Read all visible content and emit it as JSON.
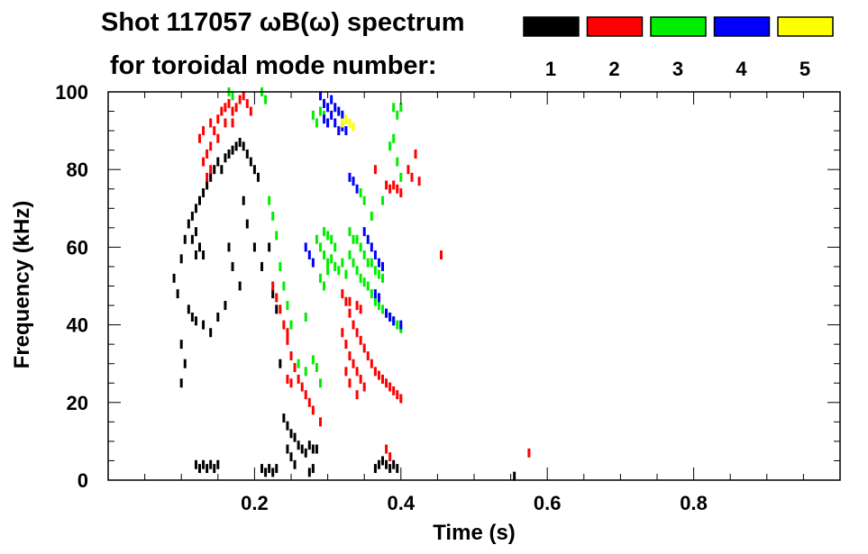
{
  "chart_data": {
    "type": "scatter",
    "title_line1": "Shot 117057 ωB(ω) spectrum",
    "title_line2": "for toroidal mode number:",
    "xlabel": "Time (s)",
    "ylabel": "Frequency (kHz)",
    "xlim": [
      0.0,
      1.0
    ],
    "ylim": [
      0,
      100
    ],
    "x_ticks": [
      0.2,
      0.4,
      0.6,
      0.8
    ],
    "x_tick_labels": [
      "0.2",
      "0.4",
      "0.6",
      "0.8"
    ],
    "y_ticks": [
      0,
      20,
      40,
      60,
      80,
      100
    ],
    "y_tick_labels": [
      "0",
      "20",
      "40",
      "60",
      "80",
      "100"
    ],
    "grid": false,
    "legend_position": "top-right",
    "legend": [
      {
        "label": "1",
        "color": "#000000"
      },
      {
        "label": "2",
        "color": "#ff0000"
      },
      {
        "label": "3",
        "color": "#00ee00"
      },
      {
        "label": "4",
        "color": "#0000ff"
      },
      {
        "label": "5",
        "color": "#ffff00"
      }
    ],
    "series": [
      {
        "name": "1",
        "color": "#000000",
        "points": [
          [
            0.09,
            52
          ],
          [
            0.095,
            48
          ],
          [
            0.1,
            57
          ],
          [
            0.105,
            62
          ],
          [
            0.11,
            66
          ],
          [
            0.115,
            68
          ],
          [
            0.12,
            70
          ],
          [
            0.125,
            72
          ],
          [
            0.13,
            74
          ],
          [
            0.135,
            76
          ],
          [
            0.14,
            78
          ],
          [
            0.145,
            80
          ],
          [
            0.15,
            82
          ],
          [
            0.155,
            80
          ],
          [
            0.16,
            83
          ],
          [
            0.165,
            84
          ],
          [
            0.17,
            85
          ],
          [
            0.175,
            86
          ],
          [
            0.18,
            87
          ],
          [
            0.185,
            86
          ],
          [
            0.19,
            84
          ],
          [
            0.195,
            82
          ],
          [
            0.2,
            80
          ],
          [
            0.205,
            78
          ],
          [
            0.115,
            62
          ],
          [
            0.12,
            64
          ],
          [
            0.125,
            60
          ],
          [
            0.13,
            58
          ],
          [
            0.12,
            58
          ],
          [
            0.11,
            44
          ],
          [
            0.115,
            42
          ],
          [
            0.12,
            41
          ],
          [
            0.1,
            35
          ],
          [
            0.105,
            30
          ],
          [
            0.1,
            25
          ],
          [
            0.13,
            40
          ],
          [
            0.14,
            38
          ],
          [
            0.15,
            42
          ],
          [
            0.16,
            45
          ],
          [
            0.165,
            60
          ],
          [
            0.17,
            55
          ],
          [
            0.18,
            50
          ],
          [
            0.185,
            72
          ],
          [
            0.19,
            66
          ],
          [
            0.2,
            60
          ],
          [
            0.21,
            55
          ],
          [
            0.22,
            60
          ],
          [
            0.225,
            48
          ],
          [
            0.23,
            44
          ],
          [
            0.235,
            30
          ],
          [
            0.24,
            16
          ],
          [
            0.245,
            14
          ],
          [
            0.25,
            12
          ],
          [
            0.255,
            11
          ],
          [
            0.26,
            9
          ],
          [
            0.265,
            8
          ],
          [
            0.27,
            7
          ],
          [
            0.275,
            9
          ],
          [
            0.28,
            8
          ],
          [
            0.285,
            8
          ],
          [
            0.245,
            8
          ],
          [
            0.25,
            6
          ],
          [
            0.255,
            4
          ],
          [
            0.12,
            4
          ],
          [
            0.125,
            3
          ],
          [
            0.13,
            4
          ],
          [
            0.135,
            3
          ],
          [
            0.14,
            4
          ],
          [
            0.145,
            3
          ],
          [
            0.15,
            4
          ],
          [
            0.21,
            3
          ],
          [
            0.215,
            2
          ],
          [
            0.22,
            3
          ],
          [
            0.225,
            2
          ],
          [
            0.23,
            3
          ],
          [
            0.275,
            2
          ],
          [
            0.28,
            3
          ],
          [
            0.365,
            3
          ],
          [
            0.37,
            4
          ],
          [
            0.375,
            5
          ],
          [
            0.38,
            4
          ],
          [
            0.385,
            3
          ],
          [
            0.39,
            4
          ],
          [
            0.395,
            3
          ],
          [
            0.555,
            1
          ]
        ]
      },
      {
        "name": "2",
        "color": "#ff0000",
        "points": [
          [
            0.13,
            82
          ],
          [
            0.135,
            84
          ],
          [
            0.14,
            86
          ],
          [
            0.145,
            90
          ],
          [
            0.15,
            93
          ],
          [
            0.155,
            95
          ],
          [
            0.16,
            96
          ],
          [
            0.165,
            97
          ],
          [
            0.17,
            95
          ],
          [
            0.175,
            96
          ],
          [
            0.18,
            98
          ],
          [
            0.185,
            99
          ],
          [
            0.19,
            97
          ],
          [
            0.195,
            95
          ],
          [
            0.125,
            88
          ],
          [
            0.13,
            90
          ],
          [
            0.14,
            92
          ],
          [
            0.15,
            88
          ],
          [
            0.16,
            92
          ],
          [
            0.17,
            92
          ],
          [
            0.135,
            78
          ],
          [
            0.14,
            80
          ],
          [
            0.225,
            50
          ],
          [
            0.23,
            47
          ],
          [
            0.235,
            44
          ],
          [
            0.24,
            40
          ],
          [
            0.245,
            36
          ],
          [
            0.25,
            32
          ],
          [
            0.255,
            29
          ],
          [
            0.26,
            26
          ],
          [
            0.265,
            24
          ],
          [
            0.27,
            22
          ],
          [
            0.275,
            20
          ],
          [
            0.28,
            18
          ],
          [
            0.245,
            26
          ],
          [
            0.25,
            25
          ],
          [
            0.32,
            48
          ],
          [
            0.325,
            46
          ],
          [
            0.33,
            43
          ],
          [
            0.335,
            40
          ],
          [
            0.34,
            38
          ],
          [
            0.345,
            36
          ],
          [
            0.35,
            34
          ],
          [
            0.355,
            32
          ],
          [
            0.36,
            30
          ],
          [
            0.365,
            28
          ],
          [
            0.37,
            27
          ],
          [
            0.375,
            26
          ],
          [
            0.38,
            25
          ],
          [
            0.385,
            24
          ],
          [
            0.39,
            23
          ],
          [
            0.395,
            22
          ],
          [
            0.4,
            21
          ],
          [
            0.32,
            38
          ],
          [
            0.325,
            35
          ],
          [
            0.33,
            32
          ],
          [
            0.335,
            30
          ],
          [
            0.34,
            28
          ],
          [
            0.345,
            26
          ],
          [
            0.35,
            24
          ],
          [
            0.325,
            28
          ],
          [
            0.33,
            25
          ],
          [
            0.34,
            22
          ],
          [
            0.33,
            46
          ],
          [
            0.34,
            45
          ],
          [
            0.345,
            44
          ],
          [
            0.365,
            80
          ],
          [
            0.38,
            76
          ],
          [
            0.385,
            75
          ],
          [
            0.39,
            76
          ],
          [
            0.395,
            75
          ],
          [
            0.4,
            74
          ],
          [
            0.41,
            80
          ],
          [
            0.415,
            78
          ],
          [
            0.425,
            77
          ],
          [
            0.42,
            84
          ],
          [
            0.455,
            58
          ],
          [
            0.38,
            8
          ],
          [
            0.385,
            6
          ],
          [
            0.575,
            7
          ],
          [
            0.245,
            38
          ],
          [
            0.29,
            15
          ]
        ]
      },
      {
        "name": "3",
        "color": "#00ee00",
        "points": [
          [
            0.165,
            100
          ],
          [
            0.17,
            99
          ],
          [
            0.21,
            100
          ],
          [
            0.215,
            98
          ],
          [
            0.28,
            94
          ],
          [
            0.285,
            92
          ],
          [
            0.29,
            95
          ],
          [
            0.295,
            94
          ],
          [
            0.22,
            72
          ],
          [
            0.225,
            68
          ],
          [
            0.23,
            63
          ],
          [
            0.235,
            55
          ],
          [
            0.24,
            50
          ],
          [
            0.245,
            45
          ],
          [
            0.25,
            40
          ],
          [
            0.28,
            31
          ],
          [
            0.285,
            29
          ],
          [
            0.29,
            25
          ],
          [
            0.27,
            42
          ],
          [
            0.285,
            62
          ],
          [
            0.29,
            60
          ],
          [
            0.295,
            58
          ],
          [
            0.3,
            56
          ],
          [
            0.305,
            57
          ],
          [
            0.31,
            55
          ],
          [
            0.315,
            54
          ],
          [
            0.29,
            52
          ],
          [
            0.295,
            50
          ],
          [
            0.3,
            54
          ],
          [
            0.31,
            60
          ],
          [
            0.305,
            62
          ],
          [
            0.3,
            63
          ],
          [
            0.295,
            64
          ],
          [
            0.32,
            56
          ],
          [
            0.325,
            53
          ],
          [
            0.33,
            58
          ],
          [
            0.335,
            56
          ],
          [
            0.34,
            54
          ],
          [
            0.345,
            52
          ],
          [
            0.35,
            51
          ],
          [
            0.355,
            50
          ],
          [
            0.36,
            48
          ],
          [
            0.365,
            46
          ],
          [
            0.37,
            45
          ],
          [
            0.375,
            44
          ],
          [
            0.38,
            43
          ],
          [
            0.385,
            42
          ],
          [
            0.39,
            41
          ],
          [
            0.395,
            40
          ],
          [
            0.4,
            39
          ],
          [
            0.33,
            64
          ],
          [
            0.335,
            62
          ],
          [
            0.34,
            62
          ],
          [
            0.345,
            60
          ],
          [
            0.35,
            58
          ],
          [
            0.355,
            56
          ],
          [
            0.36,
            56
          ],
          [
            0.365,
            54
          ],
          [
            0.37,
            53
          ],
          [
            0.375,
            52
          ],
          [
            0.345,
            74
          ],
          [
            0.35,
            72
          ],
          [
            0.36,
            68
          ],
          [
            0.375,
            72
          ],
          [
            0.385,
            86
          ],
          [
            0.39,
            88
          ],
          [
            0.395,
            82
          ],
          [
            0.4,
            78
          ],
          [
            0.39,
            96
          ],
          [
            0.395,
            94
          ],
          [
            0.4,
            96
          ],
          [
            0.26,
            30
          ],
          [
            0.27,
            28
          ]
        ]
      },
      {
        "name": "4",
        "color": "#0000ff",
        "points": [
          [
            0.29,
            99
          ],
          [
            0.295,
            97
          ],
          [
            0.3,
            96
          ],
          [
            0.305,
            94
          ],
          [
            0.31,
            92
          ],
          [
            0.315,
            90
          ],
          [
            0.32,
            91
          ],
          [
            0.325,
            90
          ],
          [
            0.3,
            92
          ],
          [
            0.31,
            96
          ],
          [
            0.32,
            94
          ],
          [
            0.295,
            93
          ],
          [
            0.305,
            98
          ],
          [
            0.315,
            95
          ],
          [
            0.27,
            60
          ],
          [
            0.275,
            58
          ],
          [
            0.28,
            56
          ],
          [
            0.33,
            78
          ],
          [
            0.335,
            77
          ],
          [
            0.34,
            75
          ],
          [
            0.35,
            64
          ],
          [
            0.355,
            62
          ],
          [
            0.36,
            60
          ],
          [
            0.365,
            58
          ],
          [
            0.37,
            56
          ],
          [
            0.375,
            55
          ],
          [
            0.365,
            48
          ],
          [
            0.37,
            47
          ],
          [
            0.38,
            43
          ],
          [
            0.385,
            42
          ],
          [
            0.39,
            41
          ],
          [
            0.4,
            40
          ]
        ]
      },
      {
        "name": "5",
        "color": "#ffff00",
        "points": [
          [
            0.32,
            92
          ],
          [
            0.325,
            93
          ],
          [
            0.33,
            92
          ],
          [
            0.335,
            91
          ]
        ]
      }
    ]
  }
}
